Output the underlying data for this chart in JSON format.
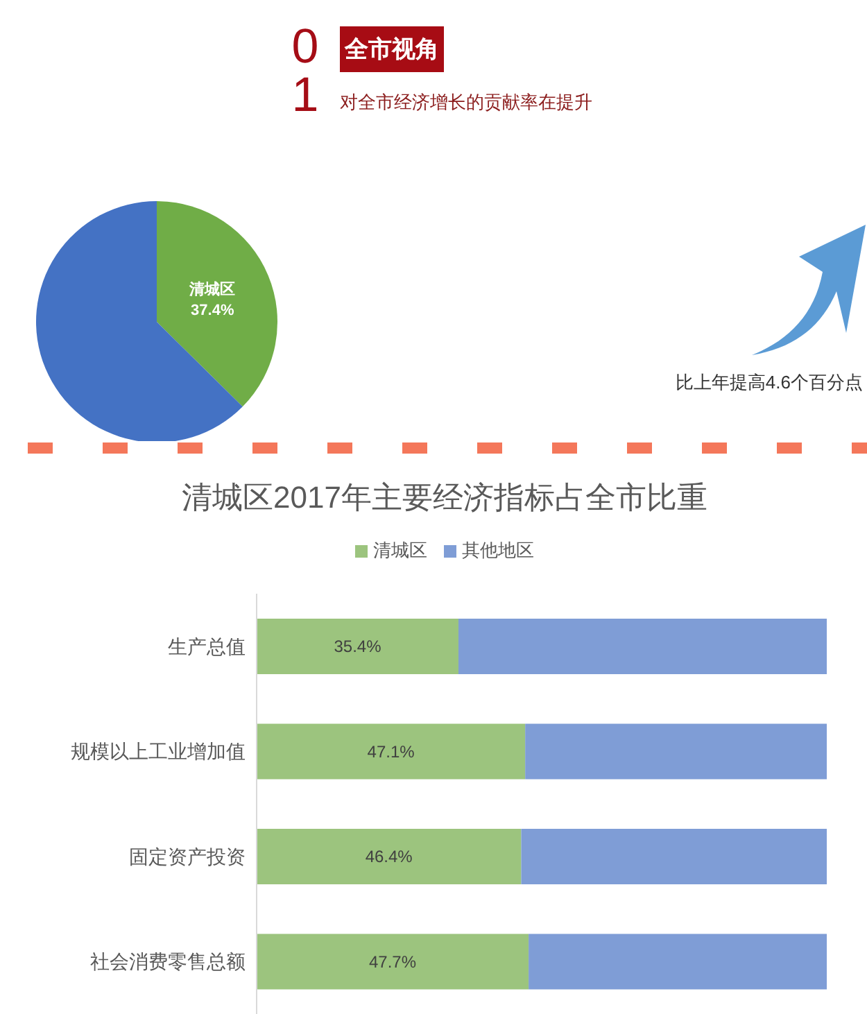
{
  "chart_data": [
    {
      "type": "pie",
      "title": "全市视角",
      "subtitle": "对全市经济增长的贡献率在提升",
      "annotations": [
        "01",
        "比上年提高4.6个百分点"
      ],
      "categories": [
        "清城区",
        null
      ],
      "values": [
        37.4,
        62.6
      ],
      "colors": [
        "#70ad47",
        "#4472c4"
      ],
      "value_labels": [
        "37.4%",
        null
      ]
    },
    {
      "type": "bar",
      "orientation": "horizontal",
      "stacked": true,
      "title": "清城区2017年主要经济指标占全市比重",
      "categories": [
        "生产总值",
        "规模以上工业增加值",
        "固定资产投资",
        "社会消费零售总额"
      ],
      "series": [
        {
          "name": "清城区",
          "color": "#9cc47e",
          "values": [
            35.4,
            47.1,
            46.4,
            47.7
          ],
          "value_labels": [
            "35.4%",
            "47.1%",
            "46.4%",
            "47.7%"
          ]
        },
        {
          "name": "其他地区",
          "color": "#7f9dd6",
          "values": [
            64.6,
            52.9,
            53.6,
            52.3
          ]
        }
      ],
      "xlim": [
        0,
        100
      ],
      "tick_labels": "y",
      "legend": "top"
    }
  ]
}
